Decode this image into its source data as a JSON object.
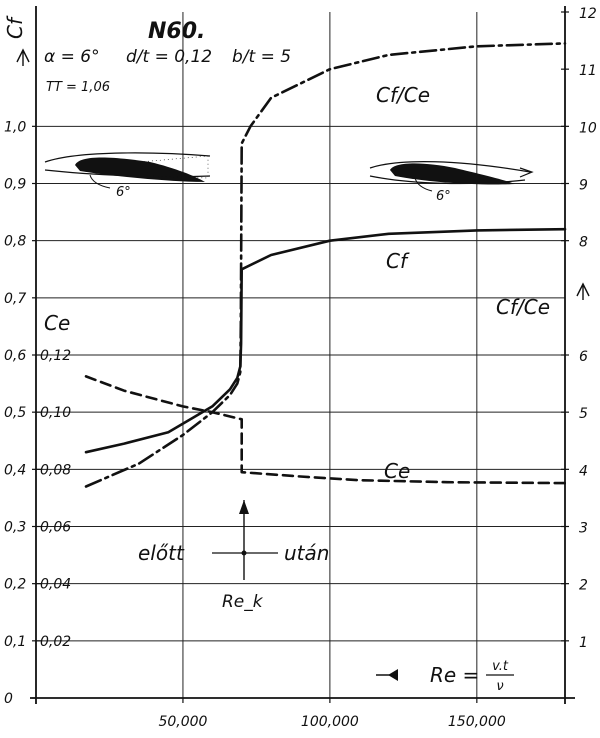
{
  "chart_data": {
    "type": "line",
    "title": "N60.",
    "parameters": {
      "alpha": "α = 6°",
      "d_t": "d/t = 0,12",
      "b_t": "b/t = 5",
      "tt": "TT = 1,06"
    },
    "xlabel": "Re = v·t / ν",
    "xlabel_formula": {
      "lhs": "Re =",
      "num": "v.t",
      "den": "ν"
    },
    "xlim": [
      0,
      180000
    ],
    "x_ticks": [
      50000,
      100000,
      150000
    ],
    "x_tick_labels": [
      "50,000",
      "100,000",
      "150,000"
    ],
    "left_axis": {
      "label": "Cf",
      "ylim": [
        0,
        1.2
      ],
      "ticks": [
        0,
        0.1,
        0.2,
        0.3,
        0.4,
        0.5,
        0.6,
        0.7,
        0.8,
        0.9,
        1.0
      ],
      "tick_labels": [
        "0",
        "0,1",
        "0,2",
        "0,3",
        "0,4",
        "0,5",
        "0,6",
        "0,7",
        "0,8",
        "0,9",
        "1,0"
      ]
    },
    "inner_axis": {
      "label": "Ce",
      "ticks": [
        0.02,
        0.04,
        0.06,
        0.08,
        0.1,
        0.12
      ],
      "tick_labels": [
        "0,02",
        "0,04",
        "0,06",
        "0,08",
        "0,10",
        "0,12"
      ]
    },
    "right_axis": {
      "label": "Cf/Ce",
      "ylim": [
        0,
        12
      ],
      "ticks": [
        1,
        2,
        3,
        4,
        5,
        6,
        8,
        9,
        10,
        11,
        12
      ],
      "tick_labels": [
        "1",
        "2",
        "3",
        "4",
        "5",
        "6",
        "8",
        "9",
        "10",
        "11",
        "12"
      ]
    },
    "critical": {
      "x": 70000,
      "label": "Re_k",
      "before": "előtt",
      "after": "után"
    },
    "series": [
      {
        "name": "Cf",
        "axis": "left",
        "style": "solid",
        "points": [
          [
            17000,
            0.43
          ],
          [
            30000,
            0.445
          ],
          [
            45000,
            0.465
          ],
          [
            60000,
            0.51
          ],
          [
            66000,
            0.54
          ],
          [
            68500,
            0.56
          ],
          [
            69500,
            0.58
          ],
          [
            69800,
            0.62
          ],
          [
            70000,
            0.75
          ],
          [
            80000,
            0.775
          ],
          [
            100000,
            0.8
          ],
          [
            120000,
            0.812
          ],
          [
            150000,
            0.818
          ],
          [
            180000,
            0.82
          ]
        ]
      },
      {
        "name": "Cf/Ce",
        "axis": "right",
        "style": "dashdot",
        "points": [
          [
            17000,
            3.7
          ],
          [
            35000,
            4.1
          ],
          [
            50000,
            4.6
          ],
          [
            60000,
            5.0
          ],
          [
            66000,
            5.3
          ],
          [
            68500,
            5.5
          ],
          [
            69500,
            5.7
          ],
          [
            69700,
            6.5
          ],
          [
            70000,
            9.7
          ],
          [
            73000,
            10.0
          ],
          [
            80000,
            10.5
          ],
          [
            100000,
            11.0
          ],
          [
            120000,
            11.25
          ],
          [
            150000,
            11.4
          ],
          [
            180000,
            11.45
          ]
        ]
      },
      {
        "name": "Ce",
        "axis": "inner",
        "style": "dashed",
        "points": [
          [
            17000,
            0.1125
          ],
          [
            30000,
            0.1075
          ],
          [
            50000,
            0.102
          ],
          [
            60000,
            0.1
          ],
          [
            70000,
            0.0975
          ],
          [
            70000,
            0.079
          ],
          [
            90000,
            0.0775
          ],
          [
            110000,
            0.0762
          ],
          [
            140000,
            0.0755
          ],
          [
            180000,
            0.0752
          ]
        ]
      }
    ],
    "grid": true
  }
}
